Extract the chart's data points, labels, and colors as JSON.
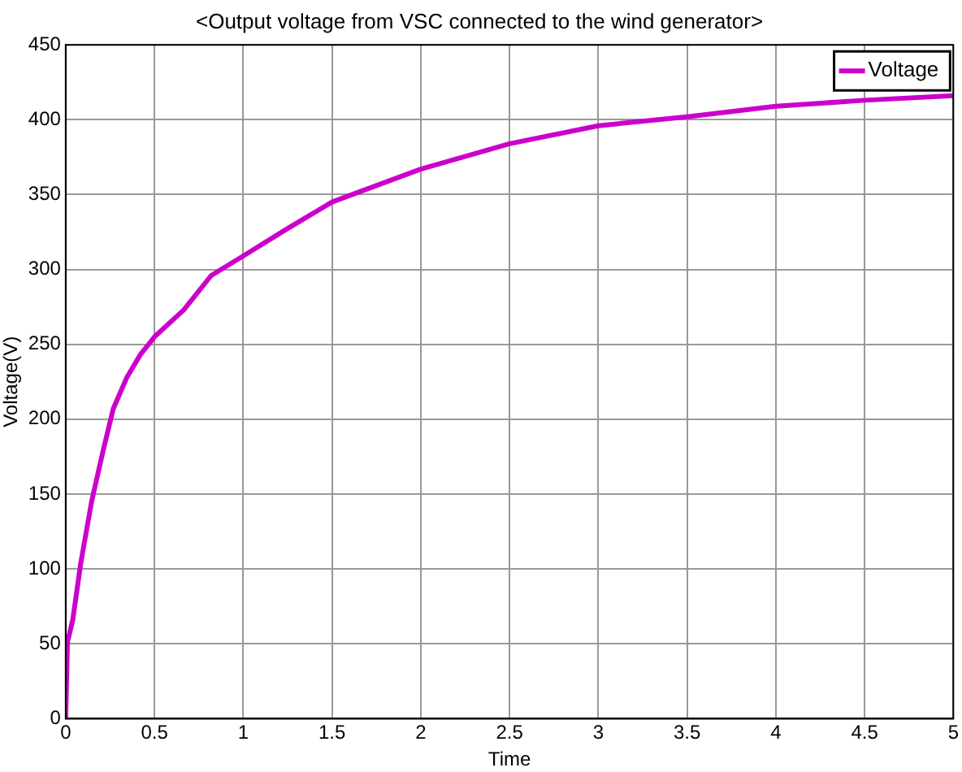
{
  "chart_data": {
    "type": "line",
    "title": "<Output voltage from VSC connected to the wind generator>",
    "xlabel": "Time",
    "ylabel": "Voltage(V)",
    "x": [
      0,
      0.01,
      0.04,
      0.085,
      0.146,
      0.207,
      0.268,
      0.345,
      0.42,
      0.5,
      0.665,
      0.82,
      1.0,
      1.245,
      1.5,
      2.0,
      2.5,
      3.0,
      3.5,
      4.0,
      4.5,
      5.0
    ],
    "series": [
      {
        "name": "Voltage",
        "color": "#cc00cc",
        "values": [
          0,
          51,
          66,
          104,
          145,
          177,
          207,
          228,
          243,
          255,
          273,
          296,
          309,
          327,
          345,
          367,
          384,
          396,
          402,
          409,
          413,
          416
        ]
      }
    ],
    "xlim": [
      0,
      5
    ],
    "xticks": [
      0,
      0.5,
      1,
      1.5,
      2,
      2.5,
      3,
      3.5,
      4,
      4.5,
      5
    ],
    "ylim": [
      0,
      450
    ],
    "yticks": [
      0,
      50,
      100,
      150,
      200,
      250,
      300,
      350,
      400,
      450
    ],
    "grid": true,
    "legend": "top right",
    "marker": "none",
    "line_style": "solid"
  }
}
